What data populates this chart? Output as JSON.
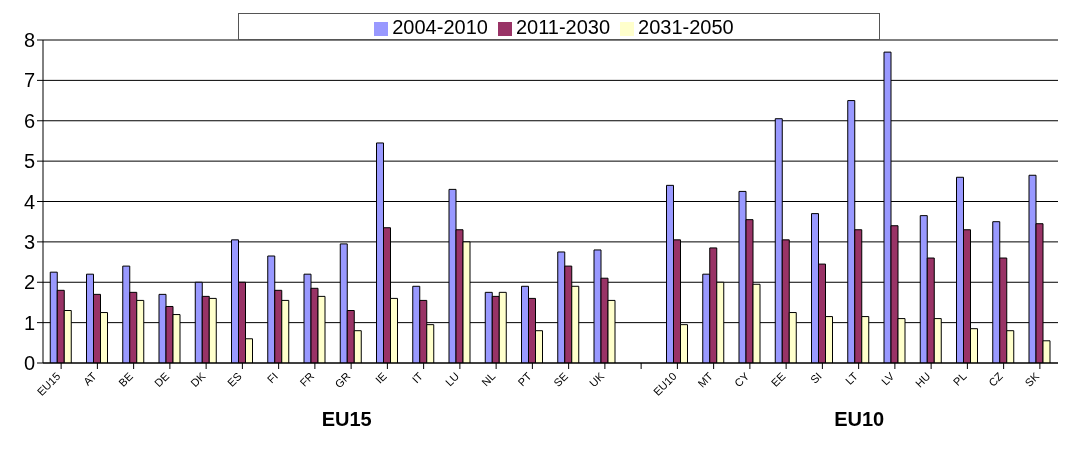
{
  "chart_data": {
    "type": "bar",
    "categories": [
      "EU15",
      "AT",
      "BE",
      "DE",
      "DK",
      "ES",
      "FI",
      "FR",
      "GR",
      "IE",
      "IT",
      "LU",
      "NL",
      "PT",
      "SE",
      "UK",
      null,
      "EU10",
      "MT",
      "CY",
      "EE",
      "SI",
      "LT",
      "LV",
      "HU",
      "PL",
      "CZ",
      "SK"
    ],
    "series": [
      {
        "name": "2004-2010",
        "color": "#9999ff",
        "values": [
          2.25,
          2.2,
          2.4,
          1.7,
          2.0,
          3.05,
          2.65,
          2.2,
          2.95,
          5.45,
          1.9,
          4.3,
          1.75,
          1.9,
          2.75,
          2.8,
          null,
          4.4,
          2.2,
          4.25,
          6.05,
          3.7,
          6.5,
          7.7,
          3.65,
          4.6,
          3.5,
          4.65
        ]
      },
      {
        "name": "2011-2030",
        "color": "#993366",
        "values": [
          1.8,
          1.7,
          1.75,
          1.4,
          1.65,
          2.0,
          1.8,
          1.85,
          1.3,
          3.35,
          1.55,
          3.3,
          1.65,
          1.6,
          2.4,
          2.1,
          null,
          3.05,
          2.85,
          3.55,
          3.05,
          2.45,
          3.3,
          3.4,
          2.6,
          3.3,
          2.6,
          3.45
        ]
      },
      {
        "name": "2031-2050",
        "color": "#ffffcc",
        "values": [
          1.3,
          1.25,
          1.55,
          1.2,
          1.6,
          0.6,
          1.55,
          1.65,
          0.8,
          1.6,
          0.95,
          3.0,
          1.75,
          0.8,
          1.9,
          1.55,
          null,
          0.95,
          2.0,
          1.95,
          1.25,
          1.15,
          1.15,
          1.1,
          1.1,
          0.85,
          0.8,
          0.55
        ]
      }
    ],
    "ylim": [
      0,
      8
    ],
    "yticks": [
      0,
      1,
      2,
      3,
      4,
      5,
      6,
      7,
      8
    ],
    "grid": "y",
    "legend": "top",
    "annotations": [
      "EU15",
      "EU10"
    ]
  }
}
